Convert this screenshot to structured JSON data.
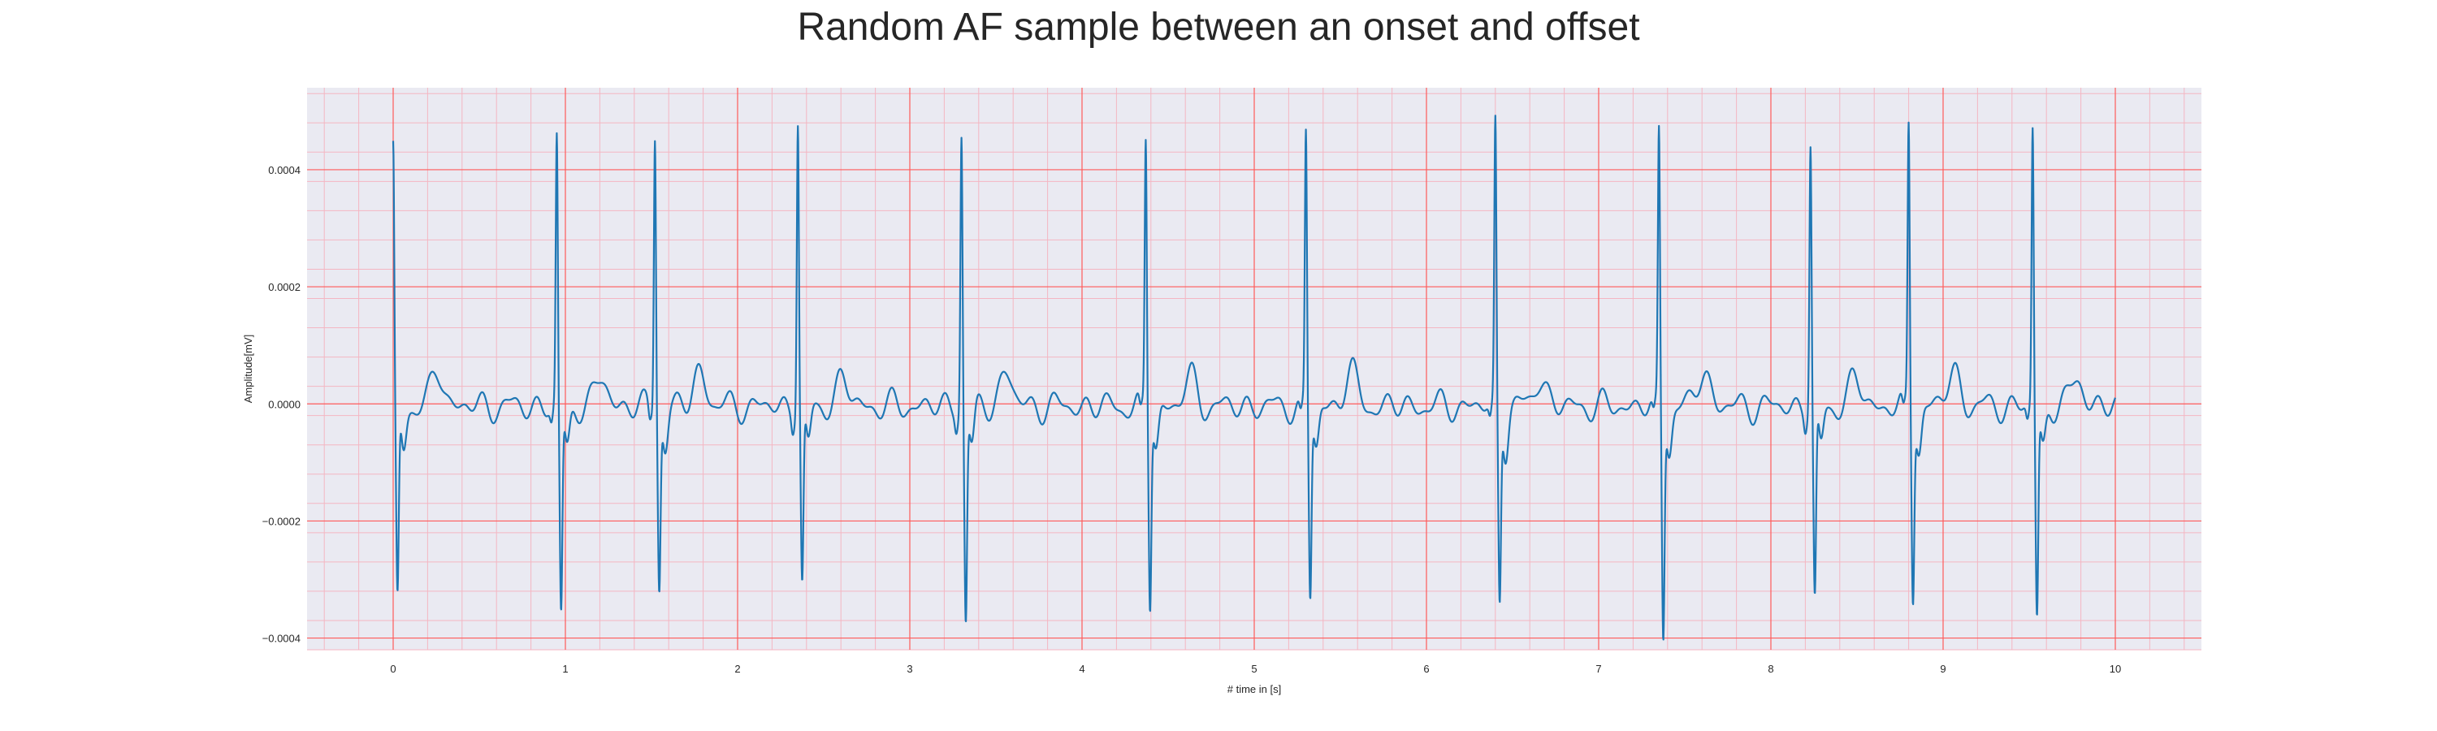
{
  "chart_data": {
    "type": "line",
    "title": "Random AF sample between an onset and offset",
    "xlabel": "# time in [s]",
    "ylabel": "Amplitude[mV]",
    "xlim": [
      -0.5,
      10.5
    ],
    "ylim": [
      -0.00042,
      0.00054
    ],
    "x_ticks": [
      0,
      1,
      2,
      3,
      4,
      5,
      6,
      7,
      8,
      9,
      10
    ],
    "x_tick_labels": [
      "0",
      "1",
      "2",
      "3",
      "4",
      "5",
      "6",
      "7",
      "8",
      "9",
      "10"
    ],
    "y_ticks": [
      -0.0004,
      -0.0002,
      0.0,
      0.0002,
      0.0004
    ],
    "y_tick_labels": [
      "−0.0004",
      "−0.0002",
      "0.0000",
      "0.0002",
      "0.0004"
    ],
    "grid": true,
    "minor_grid": true,
    "colors": {
      "line": "#1f77b4",
      "plot_background": "#eaeaf2",
      "major_grid": "#ff5a5a",
      "minor_grid": "#f4b6c2"
    },
    "series": [
      {
        "beats": [
          {
            "t": 0.0,
            "r": 0.00044,
            "s": -0.00033
          },
          {
            "t": 0.95,
            "r": 0.000455,
            "s": -0.000355
          },
          {
            "t": 1.52,
            "r": 0.00047,
            "s": -0.0003
          },
          {
            "t": 2.35,
            "r": 0.000495,
            "s": -0.000305
          },
          {
            "t": 3.3,
            "r": 0.00047,
            "s": -0.000365
          },
          {
            "t": 4.37,
            "r": 0.000455,
            "s": -0.00033
          },
          {
            "t": 5.3,
            "r": 0.000465,
            "s": -0.00032
          },
          {
            "t": 6.4,
            "r": 0.00048,
            "s": -0.000325
          },
          {
            "t": 7.35,
            "r": 0.000465,
            "s": -0.000385
          },
          {
            "t": 8.23,
            "r": 0.00045,
            "s": -0.000335
          },
          {
            "t": 8.8,
            "r": 0.00048,
            "s": -0.000315
          },
          {
            "t": 9.52,
            "r": 0.000475,
            "s": -0.000355
          }
        ],
        "t_end": 10.0,
        "fibrillation_amplitude": 2e-05,
        "t_wave_amplitude": 6e-05
      }
    ]
  }
}
